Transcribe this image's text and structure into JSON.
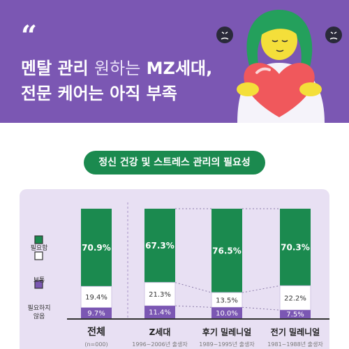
{
  "header": {
    "quote_mark": "“",
    "line1_strong_a": "멘탈 관리",
    "line1_dim": "원하는",
    "line1_strong_b": "MZ세대,",
    "line2_strong": "전문 케어는 아직 부족"
  },
  "chart_data": {
    "type": "bar",
    "title": "정신 건강 및 스트레스 관리의 필요성",
    "categories": [
      "전체",
      "Z세대",
      "후기 밀레니얼",
      "전기 밀레니얼"
    ],
    "subtitles": [
      "(n=000)",
      "1996~2006년 출생자",
      "1989~1995년 출생자",
      "1981~1988년 출생자"
    ],
    "series": [
      {
        "name": "필요함",
        "values": [
          70.9,
          67.3,
          76.5,
          70.3
        ],
        "color": "#1b8a4f"
      },
      {
        "name": "보통",
        "values": [
          19.4,
          21.3,
          13.5,
          22.2
        ],
        "color": "#ffffff"
      },
      {
        "name": "필요하지 않음",
        "values": [
          9.7,
          11.4,
          10.0,
          7.5
        ],
        "color": "#7b57b3"
      }
    ],
    "value_labels": [
      [
        "70.9%",
        "67.3%",
        "76.5%",
        "70.3%"
      ],
      [
        "19.4%",
        "21.3%",
        "13.5%",
        "22.2%"
      ],
      [
        "9.7%",
        "11.4%",
        "10.0%",
        "7.5%"
      ]
    ],
    "legend_position": "left",
    "stacked": true
  }
}
